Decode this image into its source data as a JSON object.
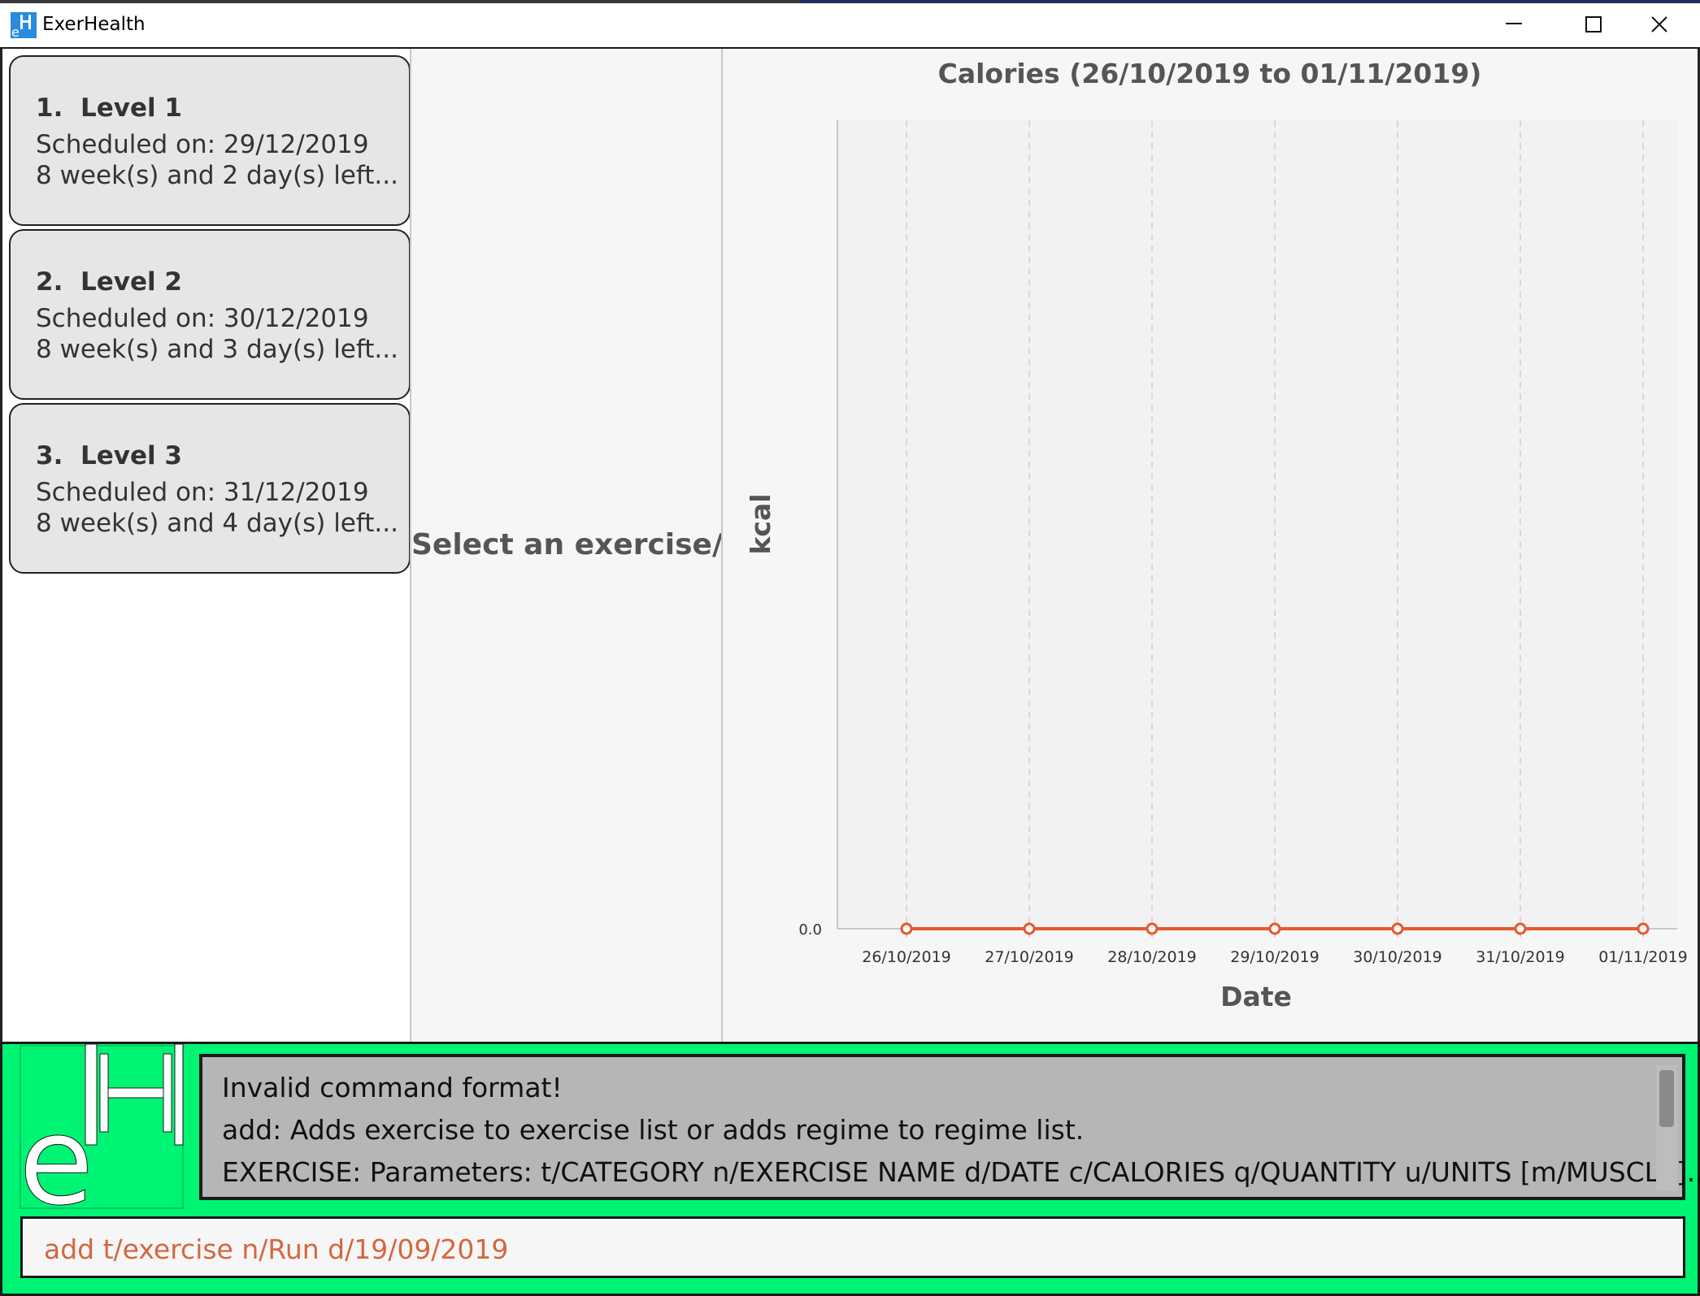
{
  "window": {
    "title": "ExerHealth",
    "controls": {
      "minimize": "minimize-icon",
      "maximize": "maximize-icon",
      "close": "close-icon"
    }
  },
  "regime_list": {
    "items": [
      {
        "index": "1.",
        "name": "Level 1",
        "scheduled": "Scheduled on: 29/12/2019",
        "remaining": "8 week(s) and 2 day(s) left..."
      },
      {
        "index": "2.",
        "name": "Level 2",
        "scheduled": "Scheduled on: 30/12/2019",
        "remaining": "8 week(s) and 3 day(s) left..."
      },
      {
        "index": "3.",
        "name": "Level 3",
        "scheduled": "Scheduled on: 31/12/2019",
        "remaining": "8 week(s) and 4 day(s) left..."
      }
    ]
  },
  "detail": {
    "placeholder": "Select an exercise/re..."
  },
  "chart_data": {
    "type": "line",
    "title": "Calories (26/10/2019 to 01/11/2019)",
    "xlabel": "Date",
    "ylabel": "kcal",
    "categories": [
      "26/10/2019",
      "27/10/2019",
      "28/10/2019",
      "29/10/2019",
      "30/10/2019",
      "31/10/2019",
      "01/11/2019"
    ],
    "series": [
      {
        "name": "Calories",
        "values": [
          0,
          0,
          0,
          0,
          0,
          0,
          0
        ]
      }
    ],
    "ytick_labels": [
      "0.0"
    ],
    "ylim": [
      0,
      1
    ],
    "grid": "vertical",
    "colors": {
      "line": "#e55a2b",
      "plot_background": "#f2f2f2",
      "grid": "#d8d8d8",
      "axis_text": "#555555"
    }
  },
  "result_display": {
    "lines": [
      "Invalid command format!",
      "add: Adds exercise to exercise list or adds regime to regime list.",
      "EXERCISE: Parameters: t/CATEGORY n/EXERCISE NAME d/DATE c/CALORIES q/QUANTITY u/UNITS [m/MUSCLE]..."
    ]
  },
  "command_box": {
    "value": "add t/exercise n/Run d/19/09/2019"
  },
  "logo": {
    "icon": "exerhealth-logo-icon"
  },
  "theme": {
    "accent_green": "#00f474",
    "error_text": "#d4673f"
  }
}
